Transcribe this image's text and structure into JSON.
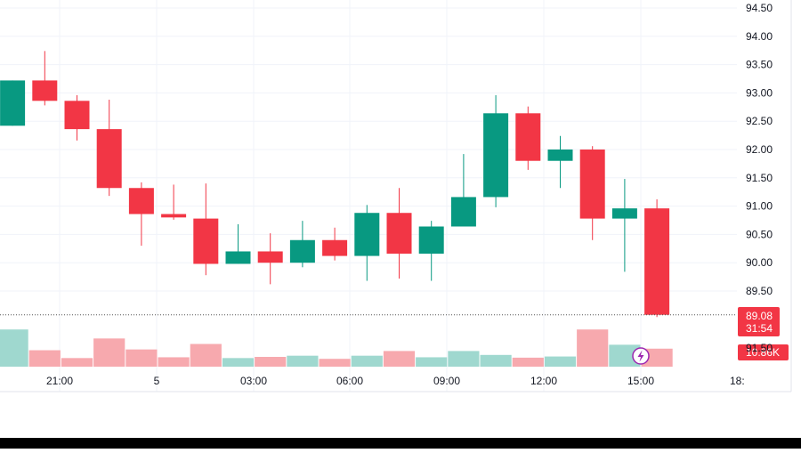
{
  "chart_data": {
    "type": "candlestick",
    "y_ticks": [
      "94.50",
      "94.00",
      "93.50",
      "93.00",
      "92.50",
      "92.00",
      "91.50",
      "91.00",
      "90.50",
      "90.00",
      "89.50"
    ],
    "ylim": [
      89.1,
      94.6
    ],
    "x_ticks": [
      "21:00",
      "5",
      "03:00",
      "06:00",
      "09:00",
      "12:00",
      "15:00",
      "18:"
    ],
    "grid": true,
    "current_price": {
      "price": 89.08,
      "label": "89.08",
      "countdown": "31:54"
    },
    "volume_badge": "10.86K",
    "hidden_tick": "91.50",
    "candles": [
      {
        "o": 92.42,
        "h": 93.22,
        "l": 92.42,
        "c": 93.22
      },
      {
        "o": 93.22,
        "h": 93.74,
        "l": 92.78,
        "c": 92.86
      },
      {
        "o": 92.86,
        "h": 92.96,
        "l": 92.16,
        "c": 92.36
      },
      {
        "o": 92.36,
        "h": 92.88,
        "l": 91.18,
        "c": 91.32
      },
      {
        "o": 91.32,
        "h": 91.42,
        "l": 90.3,
        "c": 90.86
      },
      {
        "o": 90.86,
        "h": 91.38,
        "l": 90.76,
        "c": 90.8
      },
      {
        "o": 90.78,
        "h": 91.4,
        "l": 89.78,
        "c": 89.98
      },
      {
        "o": 89.98,
        "h": 90.68,
        "l": 89.98,
        "c": 90.2
      },
      {
        "o": 90.2,
        "h": 90.52,
        "l": 89.62,
        "c": 90.0
      },
      {
        "o": 90.0,
        "h": 90.74,
        "l": 89.92,
        "c": 90.4
      },
      {
        "o": 90.4,
        "h": 90.62,
        "l": 90.04,
        "c": 90.12
      },
      {
        "o": 90.12,
        "h": 91.02,
        "l": 89.68,
        "c": 90.88
      },
      {
        "o": 90.88,
        "h": 91.32,
        "l": 89.72,
        "c": 90.16
      },
      {
        "o": 90.16,
        "h": 90.74,
        "l": 89.68,
        "c": 90.64
      },
      {
        "o": 90.64,
        "h": 91.92,
        "l": 90.64,
        "c": 91.16
      },
      {
        "o": 91.16,
        "h": 92.96,
        "l": 90.98,
        "c": 92.64
      },
      {
        "o": 92.64,
        "h": 92.76,
        "l": 91.64,
        "c": 91.8
      },
      {
        "o": 91.8,
        "h": 92.24,
        "l": 91.32,
        "c": 92.0
      },
      {
        "o": 92.0,
        "h": 92.06,
        "l": 90.4,
        "c": 90.78
      },
      {
        "o": 90.78,
        "h": 91.48,
        "l": 89.84,
        "c": 90.96
      },
      {
        "o": 90.96,
        "h": 91.12,
        "l": 89.04,
        "c": 89.08
      }
    ],
    "volumes": [
      0.95,
      0.42,
      0.22,
      0.72,
      0.44,
      0.24,
      0.58,
      0.22,
      0.25,
      0.28,
      0.2,
      0.28,
      0.4,
      0.24,
      0.4,
      0.3,
      0.23,
      0.26,
      0.95,
      0.56,
      0.46
    ],
    "colors": {
      "up": "#089981",
      "down": "#f23645",
      "up_volume": "#9fd8cf",
      "down_volume": "#f7a9ae",
      "grid": "#f0f3fa",
      "axis_text": "#131722",
      "price_line": "#555555",
      "badge_bg": "#f23645",
      "badge_text": "#ffffff",
      "lightning": "#9c27b0"
    },
    "icons": {
      "volume_indicator": "lightning-icon"
    }
  }
}
